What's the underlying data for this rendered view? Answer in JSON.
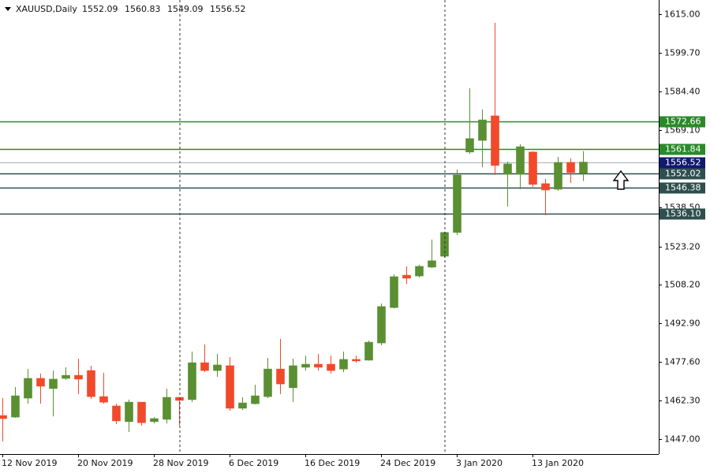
{
  "chart_data": {
    "type": "candlestick",
    "symbol": "XAUUSD,Daily",
    "up_color": "#5a8f32",
    "down_color": "#f2492a",
    "categories": [
      "12 Nov 2019",
      null,
      null,
      null,
      null,
      null,
      "20 Nov 2019",
      null,
      null,
      null,
      null,
      null,
      "28 Nov 2019",
      null,
      null,
      null,
      null,
      null,
      "6 Dec 2019",
      null,
      null,
      null,
      null,
      null,
      "16 Dec 2019",
      null,
      null,
      null,
      null,
      null,
      "24 Dec 2019",
      null,
      null,
      null,
      null,
      null,
      "3 Jan 2020",
      null,
      null,
      null,
      null,
      null,
      "13 Jan 2020",
      null,
      null,
      null,
      null
    ],
    "open": [
      1456.3,
      1455.7,
      1463.2,
      1471.0,
      1467.0,
      1471.0,
      1472.2,
      1474.1,
      1463.8,
      1460.1,
      1453.9,
      1461.6,
      1453.9,
      1454.8,
      1463.5,
      1462.6,
      1477.2,
      1474.1,
      1476.0,
      1459.2,
      1461.0,
      1463.8,
      1474.7,
      1467.3,
      1475.4,
      1476.6,
      1476.6,
      1474.7,
      1478.5,
      1478.2,
      1485.0,
      1499.0,
      1511.8,
      1511.5,
      1515.0,
      1519.3,
      1528.7,
      1560.5,
      1565.1,
      1574.8,
      1551.7,
      1551.7,
      1560.5,
      1548.0,
      1545.8,
      1556.4,
      1552.09
    ],
    "high": [
      1463.2,
      1467.6,
      1474.7,
      1472.9,
      1474.1,
      1475.4,
      1478.8,
      1476.0,
      1473.2,
      1461.0,
      1462.6,
      1461.6,
      1455.7,
      1466.9,
      1463.5,
      1481.6,
      1484.4,
      1480.7,
      1479.4,
      1463.5,
      1468.5,
      1479.1,
      1486.6,
      1478.8,
      1480.0,
      1480.7,
      1480.0,
      1481.6,
      1480.0,
      1485.9,
      1500.6,
      1512.1,
      1515.3,
      1515.9,
      1525.9,
      1529.0,
      1553.6,
      1585.7,
      1577.3,
      1611.6,
      1556.7,
      1563.6,
      1560.8,
      1549.9,
      1558.6,
      1558.0,
      1560.83
    ],
    "low": [
      1446.1,
      1455.4,
      1461.0,
      1461.0,
      1456.0,
      1470.4,
      1464.8,
      1462.9,
      1461.0,
      1452.9,
      1449.8,
      1452.3,
      1453.2,
      1453.2,
      1452.3,
      1461.7,
      1473.5,
      1471.6,
      1458.2,
      1458.5,
      1460.7,
      1463.2,
      1464.8,
      1461.7,
      1474.1,
      1474.1,
      1472.9,
      1473.5,
      1477.2,
      1478.0,
      1484.1,
      1498.7,
      1508.4,
      1510.9,
      1514.6,
      1518.7,
      1527.7,
      1559.8,
      1554.5,
      1551.4,
      1539.0,
      1545.8,
      1546.7,
      1535.5,
      1545.2,
      1548.3,
      1549.09
    ],
    "close": [
      1455.1,
      1464.1,
      1471.0,
      1467.9,
      1470.7,
      1472.2,
      1470.7,
      1463.8,
      1461.6,
      1454.2,
      1461.6,
      1453.5,
      1455.1,
      1463.5,
      1462.3,
      1477.2,
      1474.1,
      1476.3,
      1459.2,
      1461.3,
      1464.1,
      1474.7,
      1468.8,
      1476.0,
      1476.6,
      1475.4,
      1474.1,
      1478.5,
      1477.9,
      1485.3,
      1499.4,
      1511.2,
      1510.6,
      1515.3,
      1517.5,
      1528.7,
      1551.4,
      1565.8,
      1573.2,
      1555.2,
      1555.8,
      1562.6,
      1547.7,
      1545.5,
      1556.4,
      1552.4,
      1556.52
    ],
    "ylim": [
      1441.07,
      1620.61
    ],
    "yticks": [
      {
        "value": 1615,
        "label": "1615.00"
      },
      {
        "value": 1599.7,
        "label": "1599.70"
      },
      {
        "value": 1584.4,
        "label": "1584.40"
      },
      {
        "value": 1569.1,
        "label": "1569.10"
      },
      {
        "value": 1538.5,
        "label": "1538.50"
      },
      {
        "value": 1523.2,
        "label": "1523.20"
      },
      {
        "value": 1508.2,
        "label": "1508.20"
      },
      {
        "value": 1492.9,
        "label": "1492.90"
      },
      {
        "value": 1477.6,
        "label": "1477.60"
      },
      {
        "value": 1462.3,
        "label": "1462.30"
      },
      {
        "value": 1447,
        "label": "1447.00"
      }
    ],
    "levels": [
      {
        "price": 1572.66,
        "color": "#2a8a2a"
      },
      {
        "price": 1561.84,
        "color": "#2a8a2a"
      },
      {
        "price": 1552.02,
        "color": "#2f4f4f"
      },
      {
        "price": 1546.38,
        "color": "#2f4f4f"
      },
      {
        "price": {
          "value": 1536.1,
          "label": "1536.10"
        },
        "color": "#2f4f4f"
      }
    ],
    "bid_line": {
      "price": 1556.52,
      "color": "#131a6e"
    }
  }
}
